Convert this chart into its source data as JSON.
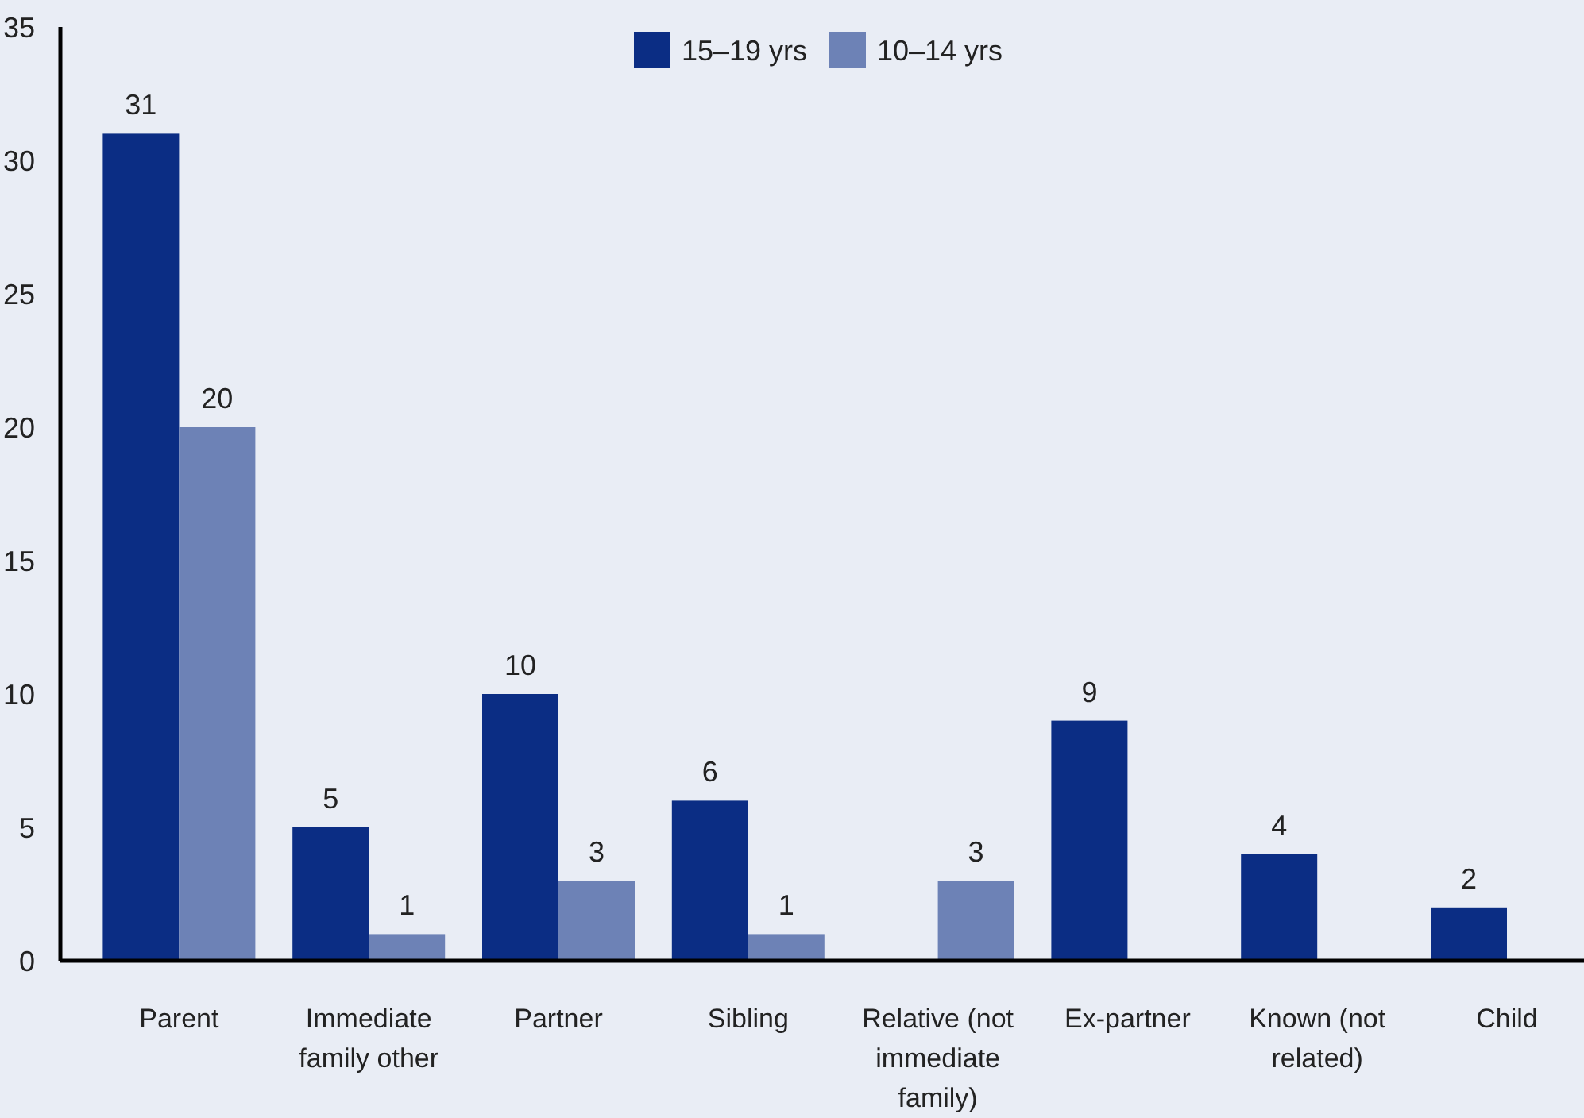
{
  "chart_data": {
    "type": "bar",
    "categories": [
      "Parent",
      "Immediate family other",
      "Partner",
      "Sibling",
      "Relative (not immediate family)",
      "Ex-partner",
      "Known (not related)",
      "Child"
    ],
    "series": [
      {
        "name": "15–19 yrs",
        "color": "#0b2d84",
        "values": [
          31,
          5,
          10,
          6,
          null,
          9,
          4,
          2
        ]
      },
      {
        "name": "10–14 yrs",
        "color": "#6d82b6",
        "values": [
          20,
          1,
          3,
          1,
          3,
          null,
          null,
          null
        ]
      }
    ],
    "ylim": [
      0,
      35
    ],
    "yticks": [
      0,
      5,
      10,
      15,
      20,
      25,
      30,
      35
    ],
    "data_labels": true,
    "legend": "top",
    "grid": false
  }
}
